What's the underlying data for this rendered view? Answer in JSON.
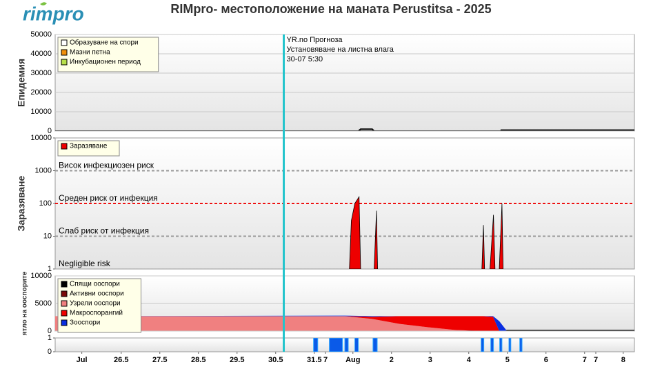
{
  "logo": "rimpro",
  "title": "RIMpro- местоположение на маната  Perustitsa - 2025",
  "now_line": {
    "x": 30.71,
    "color": "#22c4cc"
  },
  "chart_data": [
    {
      "type": "area",
      "ylabel": "Епидемия",
      "xlim": [
        24.79,
        39.79
      ],
      "ylim": [
        0,
        50000
      ],
      "yticks": [
        0,
        10000,
        20000,
        30000,
        40000,
        50000
      ],
      "grid": true,
      "legend": "upper left",
      "annotation": [
        "YR.no Прогноза",
        "Установяване на листна влага",
        "30-07 5:30"
      ],
      "series": [
        {
          "name": "Образуване на спори",
          "color": "#ffffff",
          "x": [
            24.79,
            32.64,
            32.7,
            33.0,
            33.05,
            36.33,
            36.34,
            39.79
          ],
          "values": [
            0,
            0,
            1000,
            1000,
            0,
            0,
            500,
            500
          ]
        },
        {
          "name": "Мазни петна",
          "color": "#f0900a",
          "x": [
            24.79,
            39.79
          ],
          "values": [
            0,
            0
          ]
        },
        {
          "name": "Инкубационен период",
          "color": "#b8e04a",
          "x": [
            24.79,
            39.79
          ],
          "values": [
            0,
            0
          ]
        }
      ]
    },
    {
      "type": "area",
      "ylabel": "Заразяване",
      "xlim": [
        24.79,
        39.79
      ],
      "ylim": [
        1,
        10000
      ],
      "log_scale": true,
      "yticks": [
        1,
        10,
        100,
        1000,
        10000
      ],
      "grid": false,
      "legend": "upper left",
      "reference_lines": [
        {
          "value": 1000,
          "label": "Висок инфекциозен риск",
          "color": "#999999"
        },
        {
          "value": 100,
          "label": "Среден риск от инфекция",
          "color": "#ee1111"
        },
        {
          "value": 10,
          "label": "Слаб риск от инфекция",
          "color": "#999999"
        },
        {
          "value": 1,
          "label": "Negligible risk"
        }
      ],
      "series": [
        {
          "name": "Заразяване",
          "color": "#ee0000",
          "x": [
            32.41,
            32.46,
            32.55,
            32.66,
            32.7,
            null,
            33.05,
            33.11,
            33.14,
            null,
            35.84,
            35.88,
            35.91,
            null,
            36.05,
            36.14,
            36.18,
            null,
            36.29,
            36.36,
            36.39
          ],
          "values": [
            1,
            30,
            100,
            160,
            1,
            null,
            1,
            60,
            1,
            null,
            1,
            22,
            1,
            null,
            1,
            45,
            1,
            null,
            1,
            100,
            1
          ]
        }
      ]
    },
    {
      "type": "stacked_area",
      "ylabel": "ятло на ооспорите",
      "xlim": [
        24.79,
        39.79
      ],
      "ylim": [
        0,
        10000
      ],
      "yticks": [
        0,
        5000,
        10000
      ],
      "grid": true,
      "legend": "upper left",
      "x": [
        24.79,
        32.29,
        33.0,
        33.71,
        34.43,
        35.14,
        35.86,
        36.13,
        36.29,
        36.48,
        39.79
      ],
      "series": [
        {
          "name": "Спящи ооспори",
          "color": "#000000",
          "values": [
            0,
            0,
            0,
            0,
            0,
            0,
            0,
            0,
            0,
            100,
            100
          ]
        },
        {
          "name": "Активни ооспори",
          "color": "#7a0a0a",
          "values": [
            0,
            0,
            0,
            0,
            0,
            0,
            0,
            0,
            0,
            0,
            0
          ]
        },
        {
          "name": "Узрели ооспори",
          "color": "#f08080",
          "values": [
            2700,
            2700,
            2200,
            1300,
            700,
            200,
            0,
            0,
            0,
            0,
            0
          ]
        },
        {
          "name": "Макроспорангий",
          "color": "#ee0000",
          "values": [
            0,
            0,
            400,
            1400,
            2000,
            2500,
            2700,
            2600,
            0,
            0,
            0
          ]
        },
        {
          "name": "Зооспори",
          "color": "#0a2ee0",
          "values": [
            0,
            100,
            100,
            0,
            0,
            0,
            0,
            100,
            1800,
            0,
            0
          ]
        }
      ]
    },
    {
      "type": "intervals",
      "xlim": [
        24.79,
        39.79
      ],
      "ylim": [
        0,
        1
      ],
      "yticks": [
        0,
        1
      ],
      "color": "#0a5ae8",
      "start": [
        31.48,
        31.89,
        32.29,
        32.55,
        33.02,
        35.82,
        36.07,
        36.3,
        36.54,
        36.82
      ],
      "end": [
        31.59,
        32.23,
        32.38,
        32.64,
        33.13,
        35.89,
        36.14,
        36.36,
        36.59,
        36.88
      ],
      "values": [
        1,
        1,
        1,
        1,
        1,
        1,
        1,
        1,
        1,
        1
      ],
      "xticks": [
        {
          "value": 25.48,
          "label": "Jul"
        },
        26.5,
        27.5,
        28.5,
        29.5,
        30.5,
        31.5,
        {
          "value": 31.79,
          "label": "7"
        },
        {
          "value": 32.5,
          "label": "Aug"
        },
        {
          "value": 33.5,
          "label": "2"
        },
        {
          "value": 34.5,
          "label": "3"
        },
        {
          "value": 35.5,
          "label": "4"
        },
        {
          "value": 36.5,
          "label": "5"
        },
        {
          "value": 37.5,
          "label": "6"
        },
        {
          "value": 38.5,
          "label": "7"
        },
        {
          "value": 38.79,
          "label": "7"
        },
        {
          "value": 39.5,
          "label": "8"
        }
      ]
    }
  ]
}
